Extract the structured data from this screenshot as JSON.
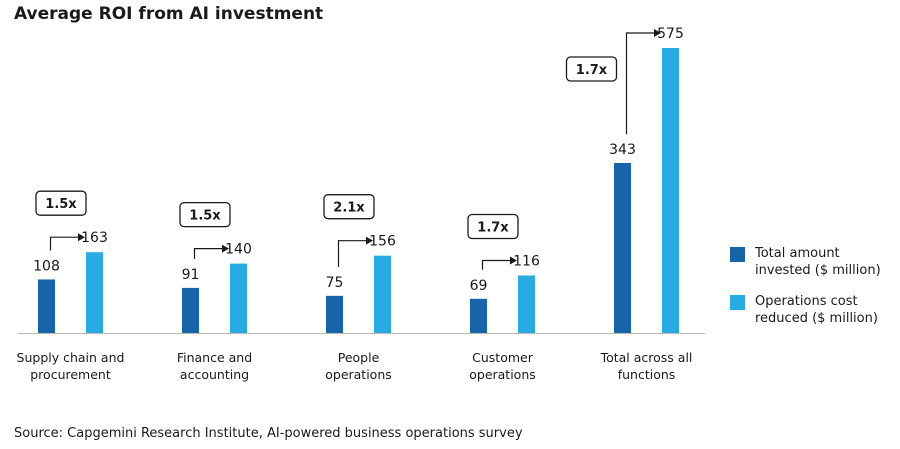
{
  "chart_data": {
    "type": "bar",
    "title": "Average ROI from AI investment",
    "categories": [
      [
        "Supply chain and",
        "procurement"
      ],
      [
        "Finance and",
        "accounting"
      ],
      [
        "People",
        "operations"
      ],
      [
        "Customer",
        "operations"
      ],
      [
        "Total across all",
        "functions"
      ]
    ],
    "series": [
      {
        "name": "Total amount invested ($ million)",
        "legend_lines": [
          "Total amount",
          "invested ($ million)"
        ],
        "color": "#1565a8",
        "values": [
          108,
          91,
          75,
          69,
          343
        ]
      },
      {
        "name": "Operations cost reduced ($ million)",
        "legend_lines": [
          "Operations cost",
          "reduced ($ million)"
        ],
        "color": "#27abe2",
        "values": [
          163,
          140,
          156,
          116,
          575
        ]
      }
    ],
    "multipliers": [
      "1.5x",
      "1.5x",
      "2.1x",
      "1.7x",
      "1.7x"
    ],
    "ylim": [
      0,
      575
    ],
    "xlabel": "",
    "ylabel": "",
    "legend": "right",
    "source": "Source: Capgemini Research Institute, AI-powered business operations survey"
  }
}
